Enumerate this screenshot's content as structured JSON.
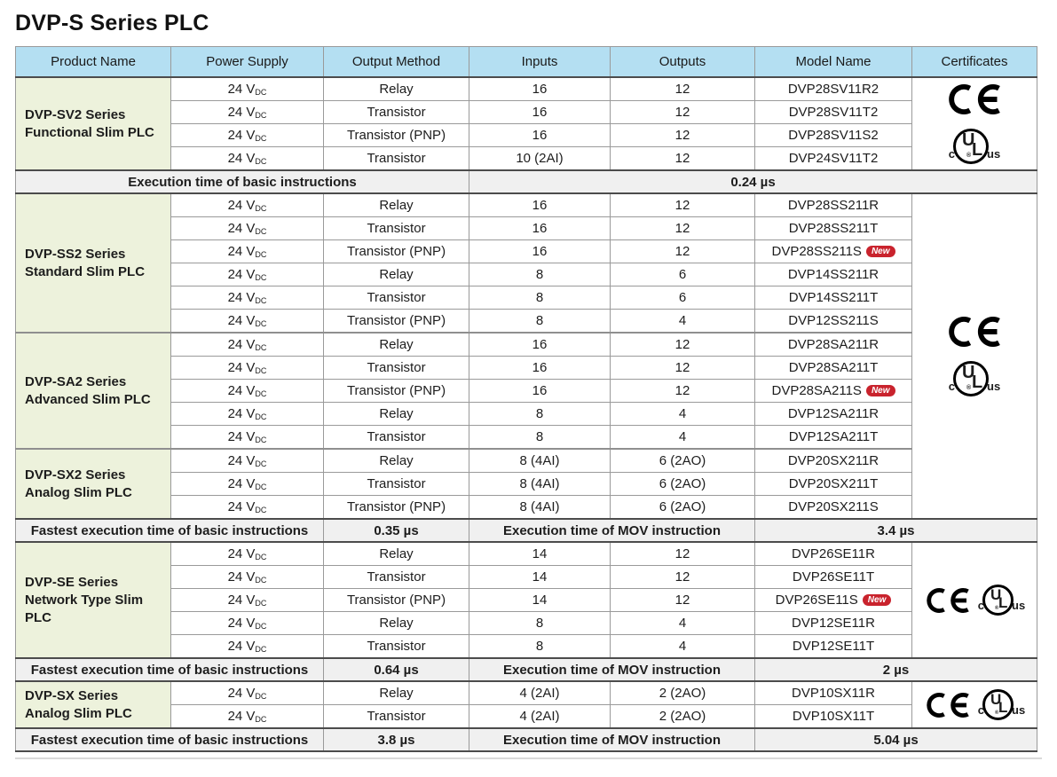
{
  "title": "DVP-S Series PLC",
  "colors": {
    "header_bg": "#b4dff2",
    "product_bg": "#edf2dc",
    "spec_row_bg": "#f0f0f0",
    "border_light": "#9a9a9a",
    "border_dark": "#4c4c4c",
    "border_section": "#8f8f8f",
    "new_badge_bg": "#c9232d",
    "cert_mark_color": "#000000"
  },
  "table": {
    "columns": [
      "Product Name",
      "Power Supply",
      "Output Method",
      "Inputs",
      "Outputs",
      "Model Name",
      "Certificates"
    ],
    "power_supply": {
      "value": "24 V",
      "subscript": "DC"
    },
    "new_badge_label": "New",
    "ul_mark": {
      "left": "c",
      "letter_u": "U",
      "letter_l": "L",
      "right": "us",
      "registered": "®"
    },
    "blocks": [
      {
        "kind": "products",
        "cert_layout": "stacked",
        "cert_marks": [
          "CE",
          "cULus"
        ],
        "groups": [
          {
            "name_lines": [
              "DVP-SV2 Series",
              "Functional Slim PLC"
            ],
            "rows": [
              {
                "output": "Relay",
                "inputs": "16",
                "outputs": "12",
                "model": "DVP28SV11R2",
                "new": false
              },
              {
                "output": "Transistor",
                "inputs": "16",
                "outputs": "12",
                "model": "DVP28SV11T2",
                "new": false
              },
              {
                "output": "Transistor (PNP)",
                "inputs": "16",
                "outputs": "12",
                "model": "DVP28SV11S2",
                "new": false
              },
              {
                "output": "Transistor",
                "inputs": "10 (2AI)",
                "outputs": "12",
                "model": "DVP24SV11T2",
                "new": false
              }
            ]
          }
        ]
      },
      {
        "kind": "spec",
        "cells": [
          {
            "text": "Execution time of basic instructions",
            "span": 3
          },
          {
            "text": "0.24 µs",
            "span": 4
          }
        ]
      },
      {
        "kind": "products",
        "cert_layout": "stacked",
        "cert_marks": [
          "CE",
          "cULus"
        ],
        "groups": [
          {
            "name_lines": [
              "DVP-SS2 Series",
              "Standard Slim PLC"
            ],
            "rows": [
              {
                "output": "Relay",
                "inputs": "16",
                "outputs": "12",
                "model": "DVP28SS211R",
                "new": false
              },
              {
                "output": "Transistor",
                "inputs": "16",
                "outputs": "12",
                "model": "DVP28SS211T",
                "new": false
              },
              {
                "output": "Transistor (PNP)",
                "inputs": "16",
                "outputs": "12",
                "model": "DVP28SS211S",
                "new": true
              },
              {
                "output": "Relay",
                "inputs": "8",
                "outputs": "6",
                "model": "DVP14SS211R",
                "new": false
              },
              {
                "output": "Transistor",
                "inputs": "8",
                "outputs": "6",
                "model": "DVP14SS211T",
                "new": false
              },
              {
                "output": "Transistor (PNP)",
                "inputs": "8",
                "outputs": "4",
                "model": "DVP12SS211S",
                "new": false
              }
            ]
          },
          {
            "name_lines": [
              "DVP-SA2 Series",
              "Advanced Slim PLC"
            ],
            "rows": [
              {
                "output": "Relay",
                "inputs": "16",
                "outputs": "12",
                "model": "DVP28SA211R",
                "new": false
              },
              {
                "output": "Transistor",
                "inputs": "16",
                "outputs": "12",
                "model": "DVP28SA211T",
                "new": false
              },
              {
                "output": "Transistor (PNP)",
                "inputs": "16",
                "outputs": "12",
                "model": "DVP28SA211S",
                "new": true
              },
              {
                "output": "Relay",
                "inputs": "8",
                "outputs": "4",
                "model": "DVP12SA211R",
                "new": false
              },
              {
                "output": "Transistor",
                "inputs": "8",
                "outputs": "4",
                "model": "DVP12SA211T",
                "new": false
              }
            ]
          },
          {
            "name_lines": [
              "DVP-SX2 Series",
              "Analog Slim PLC"
            ],
            "rows": [
              {
                "output": "Relay",
                "inputs": "8 (4AI)",
                "outputs": "6 (2AO)",
                "model": "DVP20SX211R",
                "new": false
              },
              {
                "output": "Transistor",
                "inputs": "8 (4AI)",
                "outputs": "6 (2AO)",
                "model": "DVP20SX211T",
                "new": false
              },
              {
                "output": "Transistor (PNP)",
                "inputs": "8 (4AI)",
                "outputs": "6 (2AO)",
                "model": "DVP20SX211S",
                "new": false
              }
            ]
          }
        ]
      },
      {
        "kind": "spec",
        "cells": [
          {
            "text": "Fastest execution time of basic instructions",
            "span": 2
          },
          {
            "text": "0.35 µs",
            "span": 1
          },
          {
            "text": "Execution time of MOV instruction",
            "span": 2
          },
          {
            "text": "3.4 µs",
            "span": 2
          }
        ]
      },
      {
        "kind": "products",
        "cert_layout": "inline",
        "cert_marks": [
          "CE",
          "cULus"
        ],
        "groups": [
          {
            "name_lines": [
              "DVP-SE Series",
              "Network Type Slim",
              "PLC"
            ],
            "rows": [
              {
                "output": "Relay",
                "inputs": "14",
                "outputs": "12",
                "model": "DVP26SE11R",
                "new": false
              },
              {
                "output": "Transistor",
                "inputs": "14",
                "outputs": "12",
                "model": "DVP26SE11T",
                "new": false
              },
              {
                "output": "Transistor (PNP)",
                "inputs": "14",
                "outputs": "12",
                "model": "DVP26SE11S",
                "new": true
              },
              {
                "output": "Relay",
                "inputs": "8",
                "outputs": "4",
                "model": "DVP12SE11R",
                "new": false
              },
              {
                "output": "Transistor",
                "inputs": "8",
                "outputs": "4",
                "model": "DVP12SE11T",
                "new": false
              }
            ]
          }
        ]
      },
      {
        "kind": "spec",
        "cells": [
          {
            "text": "Fastest execution time of basic instructions",
            "span": 2
          },
          {
            "text": "0.64 µs",
            "span": 1
          },
          {
            "text": "Execution time of MOV instruction",
            "span": 2
          },
          {
            "text": "2 µs",
            "span": 2
          }
        ]
      },
      {
        "kind": "products",
        "cert_layout": "inline",
        "cert_marks": [
          "CE",
          "cULus"
        ],
        "groups": [
          {
            "name_lines": [
              "DVP-SX Series",
              "Analog Slim PLC"
            ],
            "rows": [
              {
                "output": "Relay",
                "inputs": "4 (2AI)",
                "outputs": "2 (2AO)",
                "model": "DVP10SX11R",
                "new": false
              },
              {
                "output": "Transistor",
                "inputs": "4 (2AI)",
                "outputs": "2 (2AO)",
                "model": "DVP10SX11T",
                "new": false
              }
            ]
          }
        ]
      },
      {
        "kind": "spec",
        "cells": [
          {
            "text": "Fastest execution time of basic instructions",
            "span": 2
          },
          {
            "text": "3.8 µs",
            "span": 1
          },
          {
            "text": "Execution time of MOV instruction",
            "span": 2
          },
          {
            "text": "5.04 µs",
            "span": 2
          }
        ]
      }
    ]
  }
}
